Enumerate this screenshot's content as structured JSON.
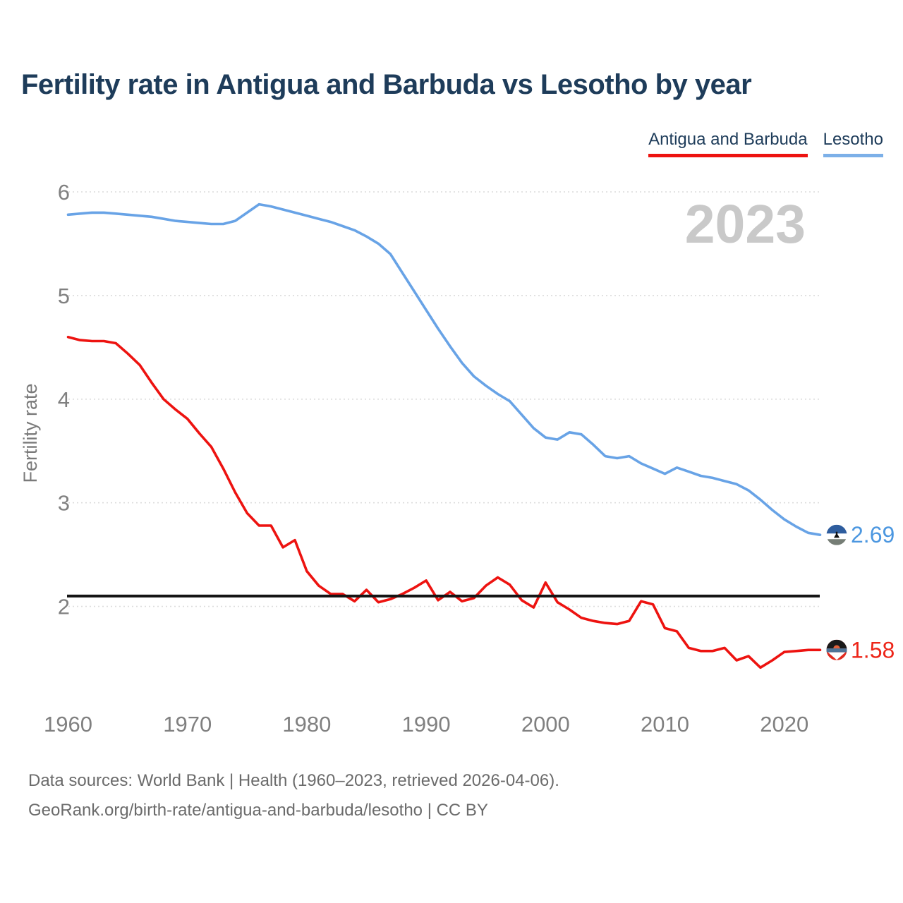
{
  "header": {
    "title": "Fertility rate in Antigua and Barbuda vs Lesotho by year"
  },
  "legend": [
    {
      "label": "Antigua and Barbuda",
      "color": "#ed1310"
    },
    {
      "label": "Lesotho",
      "color": "#7cb0e8"
    }
  ],
  "watermark": "2023",
  "end_labels": [
    {
      "series": "Lesotho",
      "value": "2.69",
      "text_color": "#4c97e0",
      "flag": "lesotho-flag-icon"
    },
    {
      "series": "Antigua and Barbuda",
      "value": "1.58",
      "text_color": "#ed2518",
      "flag": "antigua-and-barbuda-flag-icon"
    }
  ],
  "footer": {
    "line1": "Data sources: World Bank | Health (1960–2023, retrieved 2026-04-06).",
    "line2": "GeoRank.org/birth-rate/antigua-and-barbuda/lesotho | CC BY"
  },
  "chart_data": {
    "type": "line",
    "title": "Fertility rate in Antigua and Barbuda vs Lesotho by year",
    "xlabel": "",
    "ylabel": "Fertility rate",
    "xlim": [
      1960,
      2023
    ],
    "ylim": [
      1.3,
      6.15
    ],
    "yticks": [
      2,
      3,
      4,
      5,
      6
    ],
    "xticks": [
      1960,
      1970,
      1980,
      1990,
      2000,
      2010,
      2020
    ],
    "grid": "horizontal-dotted",
    "legend_position": "top-right",
    "reference_line": {
      "value": 2.1,
      "color": "#141414"
    },
    "x": [
      1960,
      1961,
      1962,
      1963,
      1964,
      1965,
      1966,
      1967,
      1968,
      1969,
      1970,
      1971,
      1972,
      1973,
      1974,
      1975,
      1976,
      1977,
      1978,
      1979,
      1980,
      1981,
      1982,
      1983,
      1984,
      1985,
      1986,
      1987,
      1988,
      1989,
      1990,
      1991,
      1992,
      1993,
      1994,
      1995,
      1996,
      1997,
      1998,
      1999,
      2000,
      2001,
      2002,
      2003,
      2004,
      2005,
      2006,
      2007,
      2008,
      2009,
      2010,
      2011,
      2012,
      2013,
      2014,
      2015,
      2016,
      2017,
      2018,
      2019,
      2020,
      2021,
      2022,
      2023
    ],
    "series": [
      {
        "name": "Antigua and Barbuda",
        "color": "#ed1310",
        "final_value": 1.58,
        "values": [
          4.6,
          4.57,
          4.56,
          4.56,
          4.54,
          4.44,
          4.33,
          4.16,
          4.0,
          3.9,
          3.81,
          3.67,
          3.54,
          3.33,
          3.1,
          2.9,
          2.78,
          2.78,
          2.57,
          2.64,
          2.34,
          2.2,
          2.12,
          2.12,
          2.05,
          2.16,
          2.04,
          2.07,
          2.12,
          2.18,
          2.25,
          2.06,
          2.14,
          2.05,
          2.08,
          2.2,
          2.28,
          2.21,
          2.06,
          1.99,
          2.23,
          2.04,
          1.97,
          1.89,
          1.86,
          1.84,
          1.83,
          1.86,
          2.05,
          2.02,
          1.79,
          1.76,
          1.6,
          1.57,
          1.57,
          1.6,
          1.48,
          1.52,
          1.41,
          1.48,
          1.56,
          1.57,
          1.58,
          1.58
        ]
      },
      {
        "name": "Lesotho",
        "color": "#68a3e6",
        "final_value": 2.69,
        "values": [
          5.78,
          5.79,
          5.8,
          5.8,
          5.79,
          5.78,
          5.77,
          5.76,
          5.74,
          5.72,
          5.71,
          5.7,
          5.69,
          5.69,
          5.72,
          5.8,
          5.88,
          5.86,
          5.83,
          5.8,
          5.77,
          5.74,
          5.71,
          5.67,
          5.63,
          5.57,
          5.5,
          5.4,
          5.22,
          5.04,
          4.86,
          4.68,
          4.51,
          4.35,
          4.22,
          4.13,
          4.05,
          3.98,
          3.85,
          3.72,
          3.63,
          3.61,
          3.68,
          3.66,
          3.56,
          3.45,
          3.43,
          3.45,
          3.38,
          3.33,
          3.28,
          3.34,
          3.3,
          3.26,
          3.24,
          3.21,
          3.18,
          3.12,
          3.03,
          2.93,
          2.84,
          2.77,
          2.71,
          2.69
        ]
      }
    ]
  }
}
